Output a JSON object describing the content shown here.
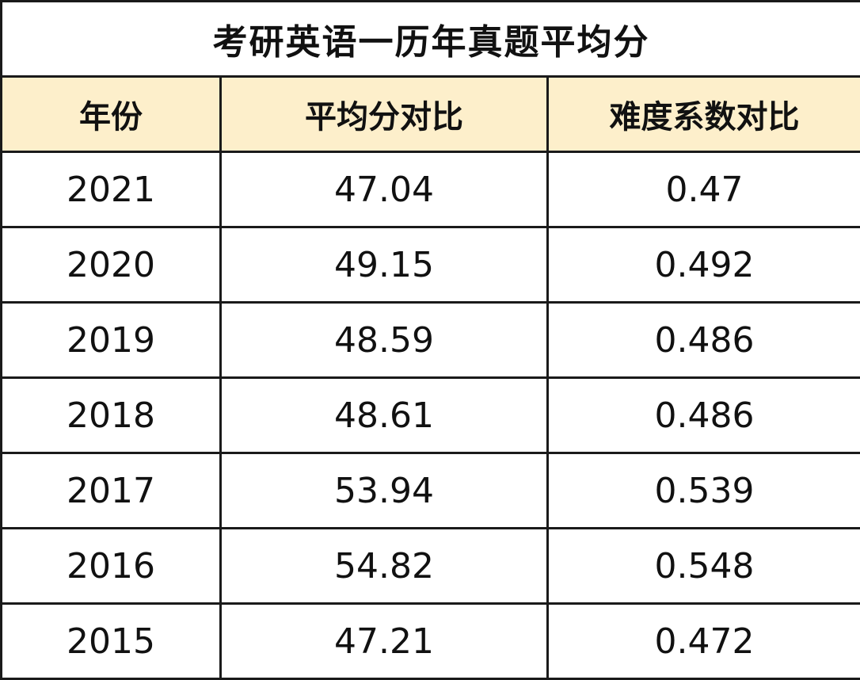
{
  "table": {
    "title": "考研英语一历年真题平均分",
    "header": [
      "年份",
      "平均分对比",
      "难度系数对比"
    ],
    "rows": [
      [
        "2021",
        "47.04",
        "0.47"
      ],
      [
        "2020",
        "49.15",
        "0.492"
      ],
      [
        "2019",
        "48.59",
        "0.486"
      ],
      [
        "2018",
        "48.61",
        "0.486"
      ],
      [
        "2017",
        "53.94",
        "0.539"
      ],
      [
        "2016",
        "54.82",
        "0.548"
      ],
      [
        "2015",
        "47.21",
        "0.472"
      ]
    ]
  }
}
